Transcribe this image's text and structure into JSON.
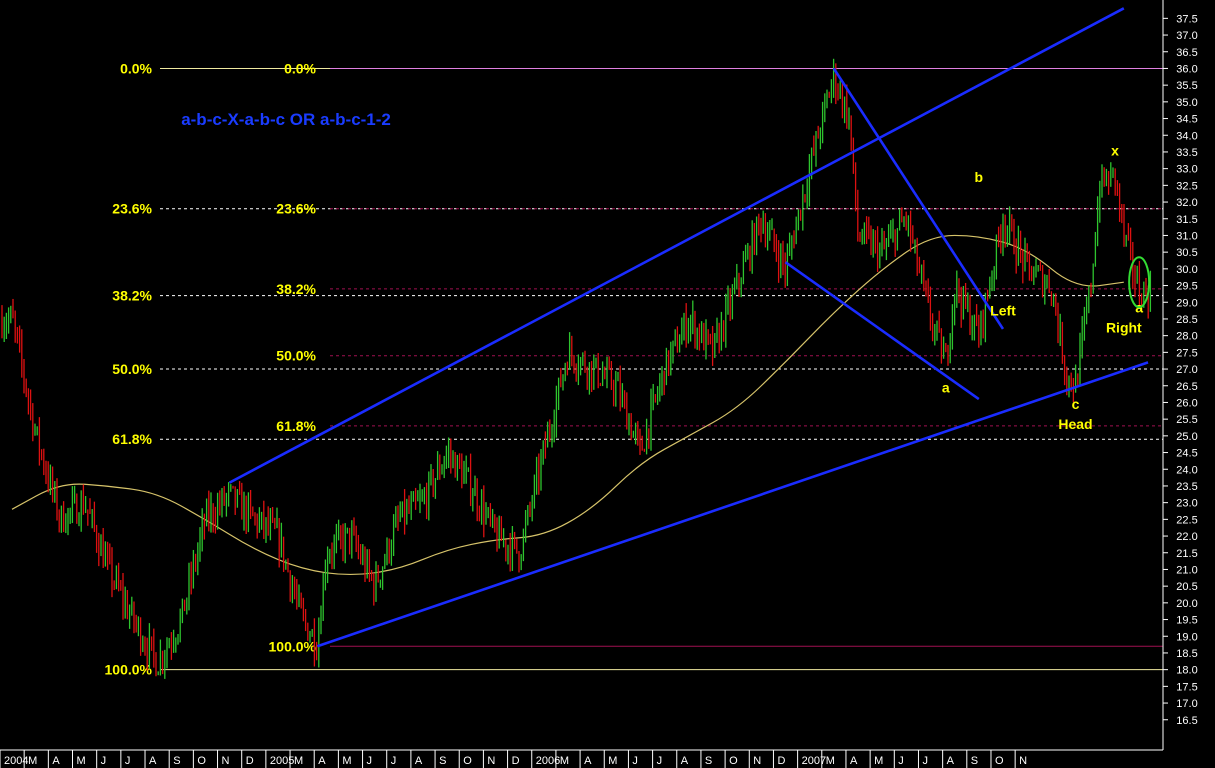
{
  "chart_data": {
    "type": "candlestick",
    "title": "",
    "subtitle": "",
    "y_axis": {
      "position": "right",
      "min": 16.0,
      "max": 37.75,
      "tick_step": 0.5,
      "tick_labels": [
        "16.5",
        "17.0",
        "17.5",
        "18.0",
        "18.5",
        "19.0",
        "19.5",
        "20.0",
        "20.5",
        "21.0",
        "21.5",
        "22.0",
        "22.5",
        "23.0",
        "23.5",
        "24.0",
        "24.5",
        "25.0",
        "25.5",
        "26.0",
        "26.5",
        "27.0",
        "27.5",
        "28.0",
        "28.5",
        "29.0",
        "29.5",
        "30.0",
        "30.5",
        "31.0",
        "31.5",
        "32.0",
        "32.5",
        "33.0",
        "33.5",
        "34.0",
        "34.5",
        "35.0",
        "35.5",
        "36.0",
        "36.5",
        "37.0",
        "37.5"
      ]
    },
    "x_axis": {
      "start": "2004-01",
      "end": "2007-11",
      "tick_labels": [
        "2004",
        "M",
        "A",
        "M",
        "J",
        "J",
        "A",
        "S",
        "O",
        "N",
        "D",
        "2005",
        "M",
        "A",
        "M",
        "J",
        "J",
        "A",
        "S",
        "O",
        "N",
        "D",
        "2006",
        "M",
        "A",
        "M",
        "J",
        "J",
        "A",
        "S",
        "O",
        "N",
        "D",
        "2007",
        "M",
        "A",
        "M",
        "J",
        "J",
        "A",
        "S",
        "O",
        "N"
      ]
    },
    "grid": false,
    "price_path": [
      [
        "2004-01",
        28.5
      ],
      [
        "2004-02",
        25.0
      ],
      [
        "2004-03",
        22.5
      ],
      [
        "2004-04",
        23.0
      ],
      [
        "2004-05",
        21.0
      ],
      [
        "2004-06",
        19.5
      ],
      [
        "2004-07",
        18.2
      ],
      [
        "2004-08",
        19.5
      ],
      [
        "2004-09",
        22.5
      ],
      [
        "2004-10",
        23.2
      ],
      [
        "2004-11",
        22.5
      ],
      [
        "2004-12",
        22.0
      ],
      [
        "2005-01",
        19.5
      ],
      [
        "2005-01-20",
        18.8
      ],
      [
        "2005-02",
        21.5
      ],
      [
        "2005-03",
        22.0
      ],
      [
        "2005-04",
        20.5
      ],
      [
        "2005-05",
        22.5
      ],
      [
        "2005-06",
        23.0
      ],
      [
        "2005-07",
        24.5
      ],
      [
        "2005-08",
        23.5
      ],
      [
        "2005-09",
        22.0
      ],
      [
        "2005-10",
        21.5
      ],
      [
        "2005-11",
        24.5
      ],
      [
        "2005-12",
        27.5
      ],
      [
        "2006-01",
        27.0
      ],
      [
        "2006-02",
        26.5
      ],
      [
        "2006-03",
        24.5
      ],
      [
        "2006-04",
        27.0
      ],
      [
        "2006-05",
        28.5
      ],
      [
        "2006-06",
        27.5
      ],
      [
        "2006-07",
        29.5
      ],
      [
        "2006-08",
        31.5
      ],
      [
        "2006-09",
        30.0
      ],
      [
        "2006-10",
        33.0
      ],
      [
        "2006-11",
        35.8
      ],
      [
        "2006-11-20",
        34.5
      ],
      [
        "2006-12",
        31.0
      ],
      [
        "2007-01",
        30.5
      ],
      [
        "2007-02",
        31.5
      ],
      [
        "2007-03",
        28.5
      ],
      [
        "2007-03-20",
        27.2
      ],
      [
        "2007-04",
        29.5
      ],
      [
        "2007-05",
        28.0
      ],
      [
        "2007-06",
        31.5
      ],
      [
        "2007-07",
        30.0
      ],
      [
        "2007-08",
        29.5
      ],
      [
        "2007-08-20",
        26.8
      ],
      [
        "2007-09",
        26.5
      ],
      [
        "2007-09-20",
        29.5
      ],
      [
        "2007-10",
        32.5
      ],
      [
        "2007-10-20",
        32.8
      ],
      [
        "2007-11",
        31.0
      ],
      [
        "2007-11-20",
        29.3
      ]
    ],
    "moving_average": [
      [
        "2004-01",
        22.8
      ],
      [
        "2004-03",
        23.6
      ],
      [
        "2004-05",
        23.5
      ],
      [
        "2004-07",
        23.3
      ],
      [
        "2004-09",
        22.5
      ],
      [
        "2004-11",
        21.6
      ],
      [
        "2005-01",
        21.0
      ],
      [
        "2005-03",
        20.8
      ],
      [
        "2005-05",
        21.0
      ],
      [
        "2005-07",
        21.6
      ],
      [
        "2005-09",
        21.9
      ],
      [
        "2005-11",
        22.0
      ],
      [
        "2006-01",
        22.8
      ],
      [
        "2006-03",
        24.2
      ],
      [
        "2006-05",
        25.0
      ],
      [
        "2006-07",
        25.8
      ],
      [
        "2006-09",
        27.2
      ],
      [
        "2006-11",
        28.7
      ],
      [
        "2007-01",
        30.0
      ],
      [
        "2007-03",
        31.0
      ],
      [
        "2007-05",
        31.0
      ],
      [
        "2007-07",
        30.6
      ],
      [
        "2007-09",
        29.4
      ],
      [
        "2007-11",
        29.6
      ]
    ],
    "fib_left": [
      {
        "label": "0.0%",
        "value": 36.0
      },
      {
        "label": "23.6%",
        "value": 31.8
      },
      {
        "label": "38.2%",
        "value": 29.2
      },
      {
        "label": "50.0%",
        "value": 27.0
      },
      {
        "label": "61.8%",
        "value": 24.9
      },
      {
        "label": "100.0%",
        "value": 18.0
      }
    ],
    "fib_right": [
      {
        "label": "0.0%",
        "value": 36.0
      },
      {
        "label": "23.6%",
        "value": 31.8
      },
      {
        "label": "38.2%",
        "value": 29.4
      },
      {
        "label": "50.0%",
        "value": 27.4
      },
      {
        "label": "61.8%",
        "value": 25.3
      },
      {
        "label": "100.0%",
        "value": 18.7
      }
    ],
    "trendlines": [
      {
        "from": [
          "2004-10",
          23.6
        ],
        "to": [
          "2007-11",
          37.8
        ]
      },
      {
        "from": [
          "2005-01-20",
          18.7
        ],
        "to": [
          "2007-12",
          27.2
        ]
      },
      {
        "from": [
          "2006-11",
          36.0
        ],
        "to": [
          "2007-06",
          28.2
        ]
      },
      {
        "from": [
          "2006-09",
          30.2
        ],
        "to": [
          "2007-05",
          26.1
        ]
      }
    ],
    "annotations": [
      {
        "text": "a-b-c-X-a-b-c OR a-b-c-1-2",
        "color": "#1a3cff",
        "x": "2004-08",
        "y": 34.3,
        "size": 17
      },
      {
        "text": "b",
        "color": "#ffff00",
        "x": "2007-05",
        "y": 32.6,
        "size": 14
      },
      {
        "text": "a",
        "color": "#ffff00",
        "x": "2007-03-20",
        "y": 26.3,
        "size": 14
      },
      {
        "text": "Left",
        "color": "#ffff00",
        "x": "2007-06",
        "y": 28.6,
        "size": 14
      },
      {
        "text": "c",
        "color": "#ffff00",
        "x": "2007-09",
        "y": 25.8,
        "size": 14
      },
      {
        "text": "Head",
        "color": "#ffff00",
        "x": "2007-09",
        "y": 25.2,
        "size": 14
      },
      {
        "text": "x",
        "color": "#ffff00",
        "x": "2007-10-20",
        "y": 33.4,
        "size": 14
      },
      {
        "text": "a",
        "color": "#ffff00",
        "x": "2007-11-20",
        "y": 28.7,
        "size": 14
      },
      {
        "text": "Right",
        "color": "#ffff00",
        "x": "2007-11",
        "y": 28.1,
        "size": 14
      }
    ],
    "highlight_ellipse": {
      "center": [
        "2007-11-20",
        29.6
      ],
      "color": "#33dd33"
    },
    "colors": {
      "up": "#2ec42e",
      "down": "#dd1111",
      "ma": "#d6c36a",
      "trendline": "#1a2cff",
      "fib_white": "#ffffff",
      "fib_dotted": "#a01050",
      "label": "#ffff00",
      "axis_text": "#ffffff"
    }
  }
}
